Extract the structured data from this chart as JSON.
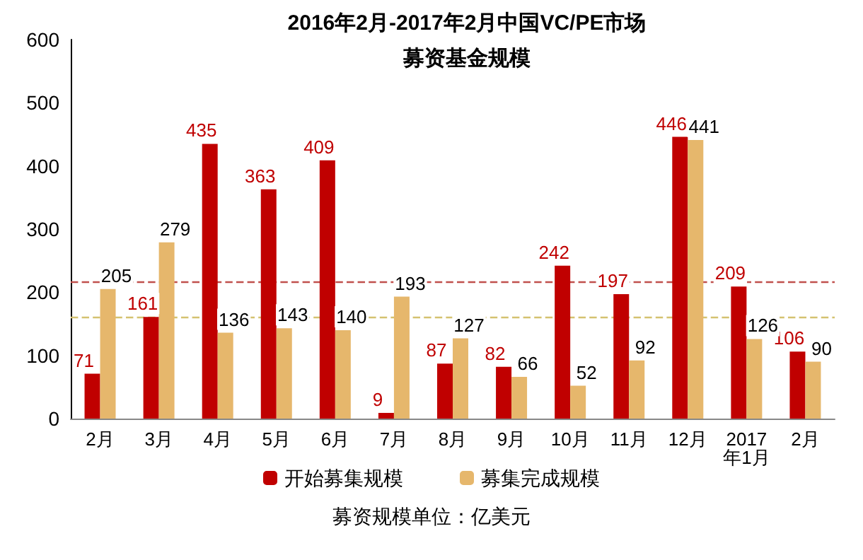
{
  "chart_data": {
    "type": "bar",
    "title": "2016年2月-2017年2月中国VC/PE市场",
    "subtitle": "募资基金规模",
    "categories": [
      "2月",
      "3月",
      "4月",
      "5月",
      "6月",
      "7月",
      "8月",
      "9月",
      "10月",
      "11月",
      "12月",
      "2017\n年1月",
      "2月"
    ],
    "series": [
      {
        "name": "开始募集规模",
        "color": "#c00000",
        "values": [
          71,
          161,
          435,
          363,
          409,
          9,
          87,
          82,
          242,
          197,
          446,
          209,
          106
        ]
      },
      {
        "name": "募集完成规模",
        "color": "#e6b76c",
        "values": [
          205,
          279,
          136,
          143,
          140,
          193,
          127,
          66,
          52,
          92,
          441,
          126,
          90
        ]
      }
    ],
    "ylim": [
      0,
      600
    ],
    "yticks": [
      0,
      100,
      200,
      300,
      400,
      500,
      600
    ],
    "grid": false,
    "data_labels": true,
    "legend": "bottom",
    "ref_lines": [
      {
        "axis": "y",
        "value": 217,
        "color": "#c0504d",
        "line_style": "dashed"
      },
      {
        "axis": "y",
        "value": 161,
        "color": "#d4c270",
        "line_style": "dashed"
      }
    ],
    "annotations": [
      "募资规模单位：亿美元"
    ]
  }
}
